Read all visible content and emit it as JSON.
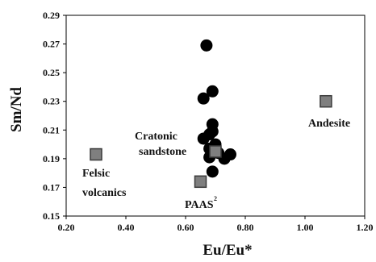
{
  "chart_data": {
    "type": "scatter",
    "xlabel": "Eu/Eu*",
    "ylabel": "Sm/Nd",
    "xlim": [
      0.2,
      1.2
    ],
    "ylim": [
      0.15,
      0.29
    ],
    "xticks": [
      "0.20",
      "0.40",
      "0.60",
      "0.80",
      "1.00",
      "1.20"
    ],
    "yticks": [
      "0.15",
      "0.17",
      "0.19",
      "0.21",
      "0.23",
      "0.25",
      "0.27",
      "0.29"
    ],
    "grid": false,
    "series": [
      {
        "marker": "circle",
        "color": "#000000",
        "points": [
          {
            "x": 0.67,
            "y": 0.269
          },
          {
            "x": 0.69,
            "y": 0.237
          },
          {
            "x": 0.66,
            "y": 0.232
          },
          {
            "x": 0.69,
            "y": 0.214
          },
          {
            "x": 0.69,
            "y": 0.209
          },
          {
            "x": 0.68,
            "y": 0.207
          },
          {
            "x": 0.66,
            "y": 0.204
          },
          {
            "x": 0.7,
            "y": 0.2
          },
          {
            "x": 0.68,
            "y": 0.197
          },
          {
            "x": 0.71,
            "y": 0.194
          },
          {
            "x": 0.75,
            "y": 0.193
          },
          {
            "x": 0.73,
            "y": 0.19
          },
          {
            "x": 0.68,
            "y": 0.191
          },
          {
            "x": 0.69,
            "y": 0.181
          }
        ]
      },
      {
        "marker": "square",
        "color": "#7f7f7f",
        "points": [
          {
            "x": 0.3,
            "y": 0.193
          },
          {
            "x": 0.65,
            "y": 0.174
          },
          {
            "x": 0.7,
            "y": 0.195
          },
          {
            "x": 1.07,
            "y": 0.23
          }
        ]
      }
    ],
    "annotations": [
      {
        "lines": [
          "Felsic",
          "volcanics"
        ]
      },
      {
        "lines": [
          "Cratonic",
          "sandstone"
        ]
      },
      {
        "lines": [
          "Andesite"
        ]
      },
      {
        "text": "PAAS",
        "sup": "2"
      }
    ]
  }
}
